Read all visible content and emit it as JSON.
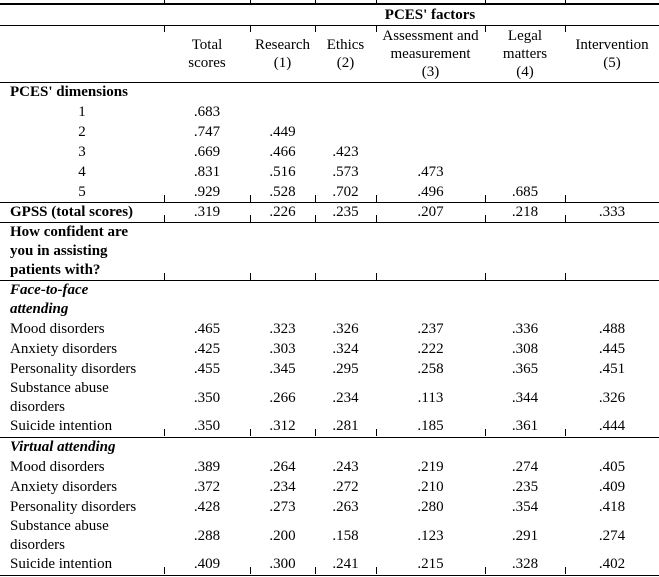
{
  "colors": {
    "text": "#000000",
    "rules": "#000000",
    "background": "#ffffff"
  },
  "header": {
    "spanner_label": "PCES' factors",
    "row_label_header": "",
    "columns": [
      {
        "id": "total-scores",
        "lines": [
          "Total",
          "scores"
        ]
      },
      {
        "id": "research",
        "lines": [
          "Research",
          "(1)"
        ]
      },
      {
        "id": "ethics",
        "lines": [
          "Ethics",
          "(2)"
        ]
      },
      {
        "id": "assessment-and-measurement",
        "lines": [
          "Assessment and",
          "measurement",
          "(3)"
        ]
      },
      {
        "id": "legal-matters",
        "lines": [
          "Legal",
          "matters",
          "(4)"
        ]
      },
      {
        "id": "intervention",
        "lines": [
          "Intervention",
          "(5)"
        ]
      }
    ]
  },
  "rows": [
    {
      "id": "pces-dimensions-header",
      "style": "bold",
      "label_lines": [
        "PCES' dimensions"
      ],
      "values": [
        "",
        "",
        "",
        "",
        "",
        ""
      ],
      "rule_below": false
    },
    {
      "id": "dimension-1",
      "style": "dim",
      "label_lines": [
        "1"
      ],
      "values": [
        ".683",
        "",
        "",
        "",
        "",
        ""
      ],
      "rule_below": false
    },
    {
      "id": "dimension-2",
      "style": "dim",
      "label_lines": [
        "2"
      ],
      "values": [
        ".747",
        ".449",
        "",
        "",
        "",
        ""
      ],
      "rule_below": false
    },
    {
      "id": "dimension-3",
      "style": "dim",
      "label_lines": [
        "3"
      ],
      "values": [
        ".669",
        ".466",
        ".423",
        "",
        "",
        ""
      ],
      "rule_below": false
    },
    {
      "id": "dimension-4",
      "style": "dim",
      "label_lines": [
        "4"
      ],
      "values": [
        ".831",
        ".516",
        ".573",
        ".473",
        "",
        ""
      ],
      "rule_below": false
    },
    {
      "id": "dimension-5",
      "style": "dim",
      "label_lines": [
        "5"
      ],
      "values": [
        ".929",
        ".528",
        ".702",
        ".496",
        ".685",
        ""
      ],
      "rule_below": true
    },
    {
      "id": "gpss-total-scores",
      "style": "bold",
      "label_lines": [
        "GPSS (total scores)"
      ],
      "values": [
        ".319",
        ".226",
        ".235",
        ".207",
        ".218",
        ".333"
      ],
      "rule_below": true
    },
    {
      "id": "confidence-question",
      "style": "bold",
      "label_lines": [
        "How confident are",
        "you in assisting",
        "patients with?"
      ],
      "values": [
        "",
        "",
        "",
        "",
        "",
        ""
      ],
      "rule_below": true
    },
    {
      "id": "face-to-face-attending",
      "style": "bolditalic",
      "label_lines": [
        "Face-to-face",
        "attending"
      ],
      "values": [
        "",
        "",
        "",
        "",
        "",
        ""
      ],
      "rule_below": false
    },
    {
      "id": "f2f-mood-disorders",
      "style": "plain",
      "label_lines": [
        "Mood disorders"
      ],
      "values": [
        ".465",
        ".323",
        ".326",
        ".237",
        ".336",
        ".488"
      ],
      "rule_below": false
    },
    {
      "id": "f2f-anxiety-disorders",
      "style": "plain",
      "label_lines": [
        "Anxiety disorders"
      ],
      "values": [
        ".425",
        ".303",
        ".324",
        ".222",
        ".308",
        ".445"
      ],
      "rule_below": false
    },
    {
      "id": "f2f-personality-disorders",
      "style": "plain",
      "label_lines": [
        "Personality disorders"
      ],
      "values": [
        ".455",
        ".345",
        ".295",
        ".258",
        ".365",
        ".451"
      ],
      "rule_below": false
    },
    {
      "id": "f2f-substance-abuse-disorders",
      "style": "plain",
      "label_lines": [
        "Substance abuse",
        "disorders"
      ],
      "values": [
        ".350",
        ".266",
        ".234",
        ".113",
        ".344",
        ".326"
      ],
      "rule_below": false
    },
    {
      "id": "f2f-suicide-intention",
      "style": "plain",
      "label_lines": [
        "Suicide intention"
      ],
      "values": [
        ".350",
        ".312",
        ".281",
        ".185",
        ".361",
        ".444"
      ],
      "rule_below": true
    },
    {
      "id": "virtual-attending",
      "style": "bolditalic",
      "label_lines": [
        "Virtual attending"
      ],
      "values": [
        "",
        "",
        "",
        "",
        "",
        ""
      ],
      "rule_below": false
    },
    {
      "id": "virtual-mood-disorders",
      "style": "plain",
      "label_lines": [
        "Mood disorders"
      ],
      "values": [
        ".389",
        ".264",
        ".243",
        ".219",
        ".274",
        ".405"
      ],
      "rule_below": false
    },
    {
      "id": "virtual-anxiety-disorders",
      "style": "plain",
      "label_lines": [
        "Anxiety disorders"
      ],
      "values": [
        ".372",
        ".234",
        ".272",
        ".210",
        ".235",
        ".409"
      ],
      "rule_below": false
    },
    {
      "id": "virtual-personality-disorders",
      "style": "plain",
      "label_lines": [
        "Personality disorders"
      ],
      "values": [
        ".428",
        ".273",
        ".263",
        ".280",
        ".354",
        ".418"
      ],
      "rule_below": false
    },
    {
      "id": "virtual-substance-abuse-disorders",
      "style": "plain",
      "label_lines": [
        "Substance abuse",
        "disorders"
      ],
      "values": [
        ".288",
        ".200",
        ".158",
        ".123",
        ".291",
        ".274"
      ],
      "rule_below": false
    },
    {
      "id": "virtual-suicide-intention",
      "style": "plain",
      "label_lines": [
        "Suicide intention"
      ],
      "values": [
        ".409",
        ".300",
        ".241",
        ".215",
        ".328",
        ".402"
      ],
      "rule_below": true
    }
  ]
}
